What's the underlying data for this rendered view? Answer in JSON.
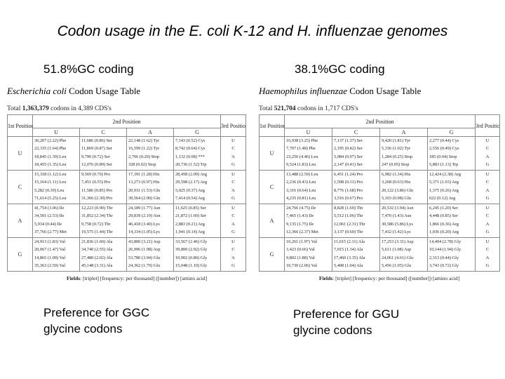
{
  "title": "Codon usage in the E. coli K-12 and H. influenzae genomes",
  "left": {
    "gc_label": "51.8%GC coding",
    "organism": "Escherichia coli",
    "table_label": "Codon Usage Table",
    "total_prefix": "Total",
    "total_codons": "1,363,379",
    "total_mid": "codons in",
    "total_cds": "4,389",
    "total_suffix": "CDS's",
    "header": {
      "first": "1st Position",
      "second": "2nd Position",
      "third": "3rd Position",
      "b1": "U",
      "b2": "C",
      "b3": "A",
      "b4": "G"
    },
    "rows": [
      {
        "base": "U",
        "third": [
          "U",
          "C",
          "A",
          "G"
        ],
        "cols": [
          [
            "30,207 (2.22) Phe",
            "22,335 (1.64) Phe",
            "18,845 (1.39) Leu",
            "18,455 (1.35) Leu"
          ],
          [
            "11,686 (0.86) Ser",
            "11,869 (0.87) Ser",
            "9,790 (0.72) Ser",
            "12,076 (0.89) Ser"
          ],
          [
            "22,148 (1.62) Tyr",
            "16,599 (1.22) Tyr",
            "2,706 (0.20) Stop",
            "328 (0.02) Stop"
          ],
          [
            "7,143 (0.52) Cys",
            "8,742 (0.64) Cys",
            "1,132 (0.08) ***",
            "20,736 (1.52) Trp"
          ]
        ]
      },
      {
        "base": "C",
        "third": [
          "U",
          "C",
          "A",
          "G"
        ],
        "cols": [
          [
            "15,318 (1.12) Leu",
            "15,164 (1.11) Leu",
            "5,282 (0.39) Leu",
            "71,614 (5.25) Leu"
          ],
          [
            "9,569 (0.70) Pro",
            "7,451 (0.55) Pro",
            "11,586 (0.85) Pro",
            "31,366 (2.30) Pro"
          ],
          [
            "17,391 (1.28) His",
            "13,273 (0.97) His",
            "20,931 (1.53) Gln",
            "39,564 (2.90) Gln"
          ],
          [
            "28,458 (2.09) Arg",
            "29,598 (2.17) Arg",
            "5,025 (0.37) Arg",
            "7,414 (0.54) Arg"
          ]
        ]
      },
      {
        "base": "A",
        "third": [
          "U",
          "C",
          "A",
          "G"
        ],
        "cols": [
          [
            "41,754 (3.06) Ile",
            "34,501 (2.53) Ile",
            "5,934 (0.44) Ile",
            "37,766 (2.77) Met"
          ],
          [
            "12,223 (0.90) Thr",
            "31,852 (2.34) Thr",
            "9,758 (0.72) Thr",
            "19,575 (1.44) Thr"
          ],
          [
            "24,189 (1.77) Asn",
            "29,839 (2.19) Asn",
            "46,418 (3.40) Lys",
            "14,334 (1.05) Lys"
          ],
          [
            "11,625 (0.85) Ser",
            "21,872 (1.60) Ser",
            "2,883 (0.21) Arg",
            "1,941 (0.14) Arg"
          ]
        ]
      },
      {
        "base": "G",
        "third": [
          "U",
          "C",
          "A",
          "G"
        ],
        "cols": [
          [
            "24,913 (1.83) Val",
            "20,067 (1.47) Val",
            "14,865 (1.09) Val",
            "35,363 (2.59) Val"
          ],
          [
            "21,836 (1.60) Ala",
            "34,740 (2.55) Ala",
            "27,480 (2.02) Ala",
            "45,148 (3.31) Ala"
          ],
          [
            "43,800 (3.21) Asp",
            "26,996 (1.98) Asp",
            "53,780 (3.94) Glu",
            "24,362 (1.79) Glu"
          ],
          [
            "33,567 (2.46) Gly",
            "39,800 (2.92) Gly",
            "10,902 (0.80) Gly",
            "15,048 (1.10) Gly"
          ]
        ]
      }
    ],
    "fields_label": "Fields",
    "fields_text": ": [triplet] [frequency: per thousand] ([number]) [amino acid]",
    "preference_line1": "Preference for GGC",
    "preference_line2": "glycine codons"
  },
  "right": {
    "gc_label": "38.1%GC coding",
    "organism": "Haemophilus influenzae",
    "table_label": "Codon Usage Table",
    "total_prefix": "Total",
    "total_codons": "521,704",
    "total_mid": "codons in",
    "total_cds": "1,717",
    "total_suffix": "CDS's",
    "header": {
      "first": "1st Position",
      "second": "2nd Position",
      "third": "3rd Position",
      "b1": "U",
      "b2": "C",
      "b3": "A",
      "b4": "G"
    },
    "rows": [
      {
        "base": "U",
        "third": [
          "U",
          "C",
          "A",
          "G"
        ],
        "cols": [
          [
            "16,938 (3.25) Phe",
            "7,707 (1.48) Phe",
            "23,256 (4.46) Leu",
            "9,524 (1.83) Leu"
          ],
          [
            "7,137 (1.37) Ser",
            "2,195 (0.42) Ser",
            "5,084 (0.97) Ser",
            "2,147 (0.41) Ser"
          ],
          [
            "9,420 (1.81) Tyr",
            "5,336 (1.02) Tyr",
            "1,284 (0.25) Stop",
            "247 (0.05) Stop"
          ],
          [
            "2,277 (0.44) Cys",
            "2,556 (0.49) Cys",
            "185 (0.04) Stop",
            "5,883 (1.13) Trp"
          ]
        ]
      },
      {
        "base": "C",
        "third": [
          "U",
          "C",
          "A",
          "G"
        ],
        "cols": [
          [
            "13,488 (2.59) Leu",
            "2,236 (0.43) Leu",
            "3,316 (0.64) Leu",
            "4,235 (0.81) Leu"
          ],
          [
            "6,451 (1.24) Pro",
            "1,598 (0.31) Pro",
            "8,776 (1.68) Pro",
            "3,516 (0.67) Pro"
          ],
          [
            "6,982 (1.34) His",
            "3,268 (0.63) His",
            "20,122 (3.86) Gln",
            "5,103 (0.98) Gln"
          ],
          [
            "12,424 (2.38) Arg",
            "5,371 (1.03) Arg",
            "1,375 (0.26) Arg",
            "622 (0.12) Arg"
          ]
        ]
      },
      {
        "base": "A",
        "third": [
          "U",
          "C",
          "A",
          "G"
        ],
        "cols": [
          [
            "24,766 (4.75) Ile",
            "7,465 (1.43) Ile",
            "9,135 (1.75) Ile",
            "12,366 (2.37) Met"
          ],
          [
            "8,828 (1.69) Thr",
            "5,512 (1.06) Thr",
            "12,061 (2.31) Thr",
            "3,137 (0.60) Thr"
          ],
          [
            "20,532 (3.94) Asn",
            "7,470 (1.43) Asn",
            "30,586 (5.86) Lys",
            "7,432 (1.42) Lys"
          ],
          [
            "6,245 (1.20) Ser",
            "4,448 (0.85) Ser",
            "1,866 (0.36) Arg",
            "1,036 (0.20) Arg"
          ]
        ]
      },
      {
        "base": "G",
        "third": [
          "U",
          "C",
          "A",
          "G"
        ],
        "cols": [
          [
            "10,261 (1.97) Val",
            "3,423 (0.66) Val",
            "9,802 (1.88) Val",
            "10,730 (2.06) Val"
          ],
          [
            "11,015 (2.11) Ala",
            "7,015 (1.34) Ala",
            "17,460 (3.35) Ala",
            "5,408 (1.04) Ala"
          ],
          [
            "17,253 (3.31) Asp",
            "5,611 (1.08) Asp",
            "24,061 (4.61) Glu",
            "5,456 (1.05) Glu"
          ],
          [
            "14,494 (2.78) Gly",
            "10,144 (1.94) Gly",
            "2,313 (0.44) Gly",
            "3,743 (0.72) Gly"
          ]
        ]
      }
    ],
    "fields_label": "Fields",
    "fields_text": ": [triplet] [frequency: per thousand] ([number]) [amino acid]",
    "preference_line1": "Preference for GGU",
    "preference_line2": "glycine codons"
  }
}
